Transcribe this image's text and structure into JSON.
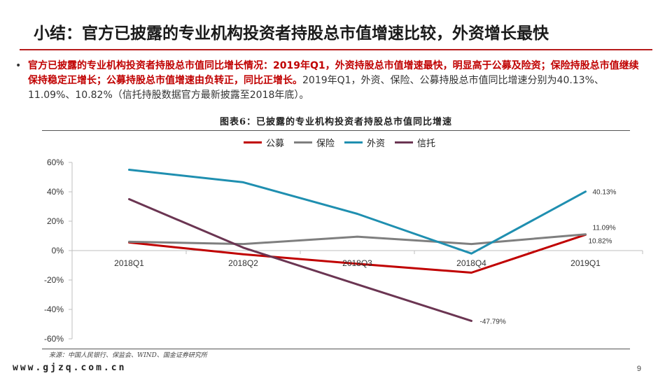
{
  "slide": {
    "title": "小结：官方已披露的专业机构投资者持股总市值增速比较，外资增长最快",
    "bullet_red": "官方已披露的专业机构投资者持股总市值同比增长情况：2019年Q1，外资持股总市值增速最快，明显高于公募及险资；保险持股总市值继续保持稳定正增长；公募持股总市值增速由负转正，同比正增长。",
    "bullet_plain": "2019年Q1，外资、保险、公募持股总市值同比增速分别为40.13%、11.09%、10.82%（信托持股数据官方最新披露至2018年底）。",
    "figure_title": "图表6：已披露的专业机构投资者持股总市值同比增速",
    "source": "来源：中国人民银行、保监会、WIND、国金证券研究所",
    "watermark": "www.gjzq.com.cn",
    "page_number": "9"
  },
  "chart_data": {
    "type": "line",
    "categories": [
      "2018Q1",
      "2018Q2",
      "2018Q3",
      "2018Q4",
      "2019Q1"
    ],
    "ylim": [
      -60,
      60
    ],
    "yticks": [
      "60%",
      "40%",
      "20%",
      "0%",
      "-20%",
      "-40%",
      "-60%"
    ],
    "ytick_values": [
      60,
      40,
      20,
      0,
      -20,
      -40,
      -60
    ],
    "legend_position": "top",
    "grid": false,
    "series": [
      {
        "name": "公募",
        "color": "#c00000",
        "values": [
          5.5,
          -2.5,
          -9,
          -15,
          10.82
        ]
      },
      {
        "name": "保险",
        "color": "#7f7f7f",
        "values": [
          6,
          4.5,
          9.5,
          4.5,
          11.09
        ]
      },
      {
        "name": "外资",
        "color": "#1f8fb0",
        "values": [
          55,
          46.5,
          25,
          -2,
          40.13
        ]
      },
      {
        "name": "信托",
        "color": "#6b3552",
        "values": [
          35,
          2,
          -23,
          -47.79,
          null
        ]
      }
    ],
    "annotations": [
      {
        "series": "外资",
        "index": 4,
        "text": "40.13%"
      },
      {
        "series": "保险",
        "index": 4,
        "text": "11.09%"
      },
      {
        "series": "公募",
        "index": 4,
        "text": "10.82%"
      },
      {
        "series": "信托",
        "index": 3,
        "text": "-47.79%"
      }
    ]
  }
}
